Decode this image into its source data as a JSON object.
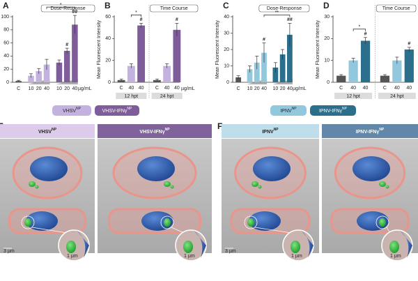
{
  "chart_data": [
    {
      "type": "bar",
      "title": "A",
      "box_label": "Dose-Response",
      "unit": "µg/mL",
      "categories": [
        "C",
        "10",
        "20",
        "40",
        "10",
        "20",
        "40"
      ],
      "values": [
        2,
        10,
        17,
        27,
        30,
        48,
        88
      ],
      "errors": [
        1,
        3,
        4,
        8,
        4,
        4,
        14
      ],
      "colors": [
        "#555555",
        "#c3b1df",
        "#c3b1df",
        "#c3b1df",
        "#7e5d9a",
        "#7e5d9a",
        "#7e5d9a"
      ],
      "sig_labels": [
        null,
        null,
        null,
        null,
        null,
        "#",
        "##"
      ],
      "brackets": [
        {
          "from": 3,
          "to": 6,
          "label": "*"
        }
      ],
      "ylim": [
        0,
        100
      ],
      "yticks": [
        0,
        20,
        40,
        60,
        80,
        100
      ]
    },
    {
      "type": "bar",
      "title": "B",
      "box_label": "Time Course",
      "unit": "µg/mL",
      "ylabel": "Mean Fluorescent Intensity",
      "categories": [
        "C",
        "40",
        "40",
        "C",
        "40",
        "40"
      ],
      "values": [
        2,
        15,
        52,
        2,
        15,
        48
      ],
      "errors": [
        1,
        2,
        2,
        1,
        2,
        6
      ],
      "colors": [
        "#555555",
        "#c3b1df",
        "#7e5d9a",
        "#555555",
        "#c3b1df",
        "#7e5d9a"
      ],
      "sig_labels": [
        null,
        null,
        "#",
        null,
        null,
        "#"
      ],
      "brackets": [
        {
          "from": 1,
          "to": 2,
          "label": "*"
        }
      ],
      "groups": [
        {
          "label": "12 hpt",
          "from": 0,
          "to": 2
        },
        {
          "label": "24 hpt",
          "from": 3,
          "to": 5
        }
      ],
      "ylim": [
        0,
        60
      ],
      "yticks": [
        0,
        20,
        40,
        60
      ]
    },
    {
      "type": "bar",
      "title": "C",
      "box_label": "Dose-Response",
      "unit": "µg/mL",
      "ylabel": "Mean Fluorescent Intensity",
      "categories": [
        "C",
        "10",
        "20",
        "40",
        "10",
        "20",
        "40"
      ],
      "values": [
        3,
        8,
        12,
        18,
        9,
        17,
        29
      ],
      "errors": [
        1,
        2,
        4,
        6,
        3,
        3,
        7
      ],
      "colors": [
        "#555555",
        "#92c8de",
        "#92c8de",
        "#92c8de",
        "#2b6f8d",
        "#2b6f8d",
        "#2b6f8d"
      ],
      "sig_labels": [
        null,
        null,
        null,
        "#",
        null,
        null,
        "##"
      ],
      "brackets": [
        {
          "from": 3,
          "to": 6,
          "label": "**"
        }
      ],
      "ylim": [
        0,
        40
      ],
      "yticks": [
        0,
        10,
        20,
        30,
        40
      ]
    },
    {
      "type": "bar",
      "title": "D",
      "box_label": "Time Course",
      "ylabel": "Mean Fluorescent Intensity",
      "categories": [
        "C",
        "40",
        "40",
        "C",
        "40",
        "40"
      ],
      "values": [
        3,
        10,
        19,
        3,
        10,
        15
      ],
      "errors": [
        0.5,
        1,
        1.5,
        0.5,
        1.5,
        1
      ],
      "colors": [
        "#555555",
        "#92c8de",
        "#2b6f8d",
        "#555555",
        "#92c8de",
        "#2b6f8d"
      ],
      "sig_labels": [
        null,
        null,
        "#",
        null,
        null,
        "#"
      ],
      "brackets": [
        {
          "from": 1,
          "to": 2,
          "label": "*"
        }
      ],
      "groups": [
        {
          "label": "12 hpt",
          "from": 0,
          "to": 2
        },
        {
          "label": "24 hpt",
          "from": 3,
          "to": 5
        }
      ],
      "ylim": [
        0,
        30
      ],
      "yticks": [
        0,
        10,
        20,
        30
      ]
    }
  ],
  "legends": [
    {
      "text": "VHSV",
      "sup": "NP",
      "color": "#c3b1df",
      "text_color": "#222222"
    },
    {
      "text": "VHSV-IFNγ",
      "sup": "NP",
      "color": "#7e5d9a",
      "text_color": "#ffffff"
    },
    {
      "text": "IPNV",
      "sup": "NP",
      "color": "#92c8de",
      "text_color": "#222222"
    },
    {
      "text": "IPNV-IFNγ",
      "sup": "NP",
      "color": "#2b6f8d",
      "text_color": "#ffffff"
    }
  ],
  "image_panels": [
    {
      "letter": "E",
      "tiles": [
        {
          "title": "VHSV",
          "sup": "NP",
          "color": "#dccbea",
          "text_color": "#222222",
          "scale": "3 µm",
          "zoom_scale": "1 µm"
        },
        {
          "title": "VHSV-IFNγ",
          "sup": "NP",
          "color": "#80639a",
          "text_color": "#ffffff",
          "zoom_scale": "1 µm"
        }
      ]
    },
    {
      "letter": "F",
      "tiles": [
        {
          "title": "IPNV",
          "sup": "NP",
          "color": "#bfdeec",
          "text_color": "#222222",
          "scale": "3 µm",
          "zoom_scale": "1 µm"
        },
        {
          "title": "IPNV-IFNγ",
          "sup": "NP",
          "color": "#6188a8",
          "text_color": "#ffffff",
          "zoom_scale": "1 µm"
        }
      ]
    }
  ]
}
